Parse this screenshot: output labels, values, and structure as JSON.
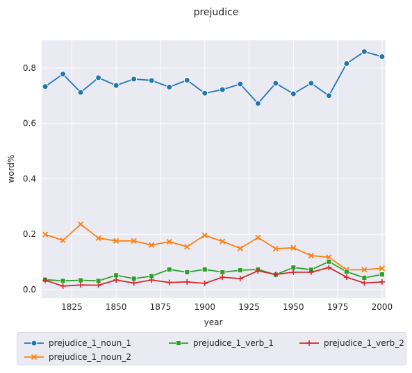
{
  "chart_data": {
    "type": "line",
    "title": "prejudice",
    "xlabel": "year",
    "ylabel": "word%",
    "xlim": [
      1808,
      2002
    ],
    "ylim": [
      -0.03,
      0.9
    ],
    "xticks": [
      1825,
      1850,
      1875,
      1900,
      1925,
      1950,
      1975,
      2000
    ],
    "yticks": [
      0.0,
      0.2,
      0.4,
      0.6,
      0.8
    ],
    "grid": true,
    "legend_position": "bottom",
    "x": [
      1810,
      1820,
      1830,
      1840,
      1850,
      1860,
      1870,
      1880,
      1890,
      1900,
      1910,
      1920,
      1930,
      1940,
      1950,
      1960,
      1970,
      1980,
      1990,
      2000
    ],
    "series": [
      {
        "name": "prejudice_1_noun_1",
        "color": "#1f77b4",
        "marker": "circle",
        "values": [
          0.733,
          0.778,
          0.712,
          0.765,
          0.737,
          0.76,
          0.755,
          0.731,
          0.756,
          0.709,
          0.722,
          0.742,
          0.672,
          0.745,
          0.707,
          0.745,
          0.7,
          0.816,
          0.859,
          0.841
        ]
      },
      {
        "name": "prejudice_1_noun_2",
        "color": "#ff7f0e",
        "marker": "x",
        "values": [
          0.199,
          0.178,
          0.236,
          0.186,
          0.176,
          0.176,
          0.161,
          0.173,
          0.155,
          0.196,
          0.174,
          0.149,
          0.188,
          0.148,
          0.151,
          0.123,
          0.117,
          0.072,
          0.072,
          0.077
        ]
      },
      {
        "name": "prejudice_1_verb_1",
        "color": "#2ca02c",
        "marker": "square",
        "values": [
          0.036,
          0.032,
          0.034,
          0.032,
          0.052,
          0.04,
          0.049,
          0.073,
          0.063,
          0.073,
          0.063,
          0.07,
          0.073,
          0.054,
          0.08,
          0.072,
          0.101,
          0.065,
          0.043,
          0.055
        ]
      },
      {
        "name": "prejudice_1_verb_2",
        "color": "#d62728",
        "marker": "plus",
        "values": [
          0.034,
          0.013,
          0.017,
          0.016,
          0.035,
          0.024,
          0.035,
          0.026,
          0.028,
          0.023,
          0.045,
          0.04,
          0.068,
          0.055,
          0.063,
          0.063,
          0.08,
          0.045,
          0.024,
          0.028
        ]
      }
    ]
  }
}
